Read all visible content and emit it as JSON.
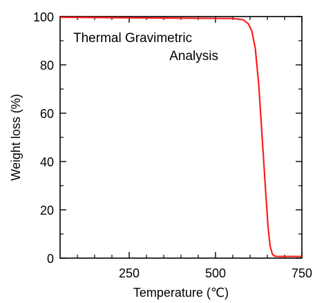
{
  "chart_data": {
    "type": "line",
    "title_lines": [
      "Thermal Gravimetric",
      "Analysis"
    ],
    "xlabel": "Temperature (℃)",
    "ylabel": "Weight loss  (%)",
    "xlim": [
      50,
      750
    ],
    "ylim": [
      0,
      100
    ],
    "x_ticks": [
      250,
      500,
      750
    ],
    "y_ticks": [
      0,
      20,
      40,
      60,
      80,
      100
    ],
    "grid": false,
    "colors": {
      "series": "#ff1a1a",
      "axes": "#000000",
      "background": "#ffffff"
    },
    "series": [
      {
        "x": [
          50,
          150,
          250,
          350,
          450,
          550,
          580,
          595,
          605,
          615,
          625,
          635,
          645,
          652,
          658,
          665,
          672,
          680,
          700,
          725,
          750
        ],
        "values": [
          99.7,
          99.6,
          99.5,
          99.4,
          99.3,
          99.2,
          98.7,
          97.0,
          94.0,
          87.0,
          72.0,
          50.0,
          28.0,
          13.0,
          5.0,
          1.5,
          0.8,
          0.7,
          0.7,
          0.7,
          0.7
        ]
      }
    ]
  }
}
